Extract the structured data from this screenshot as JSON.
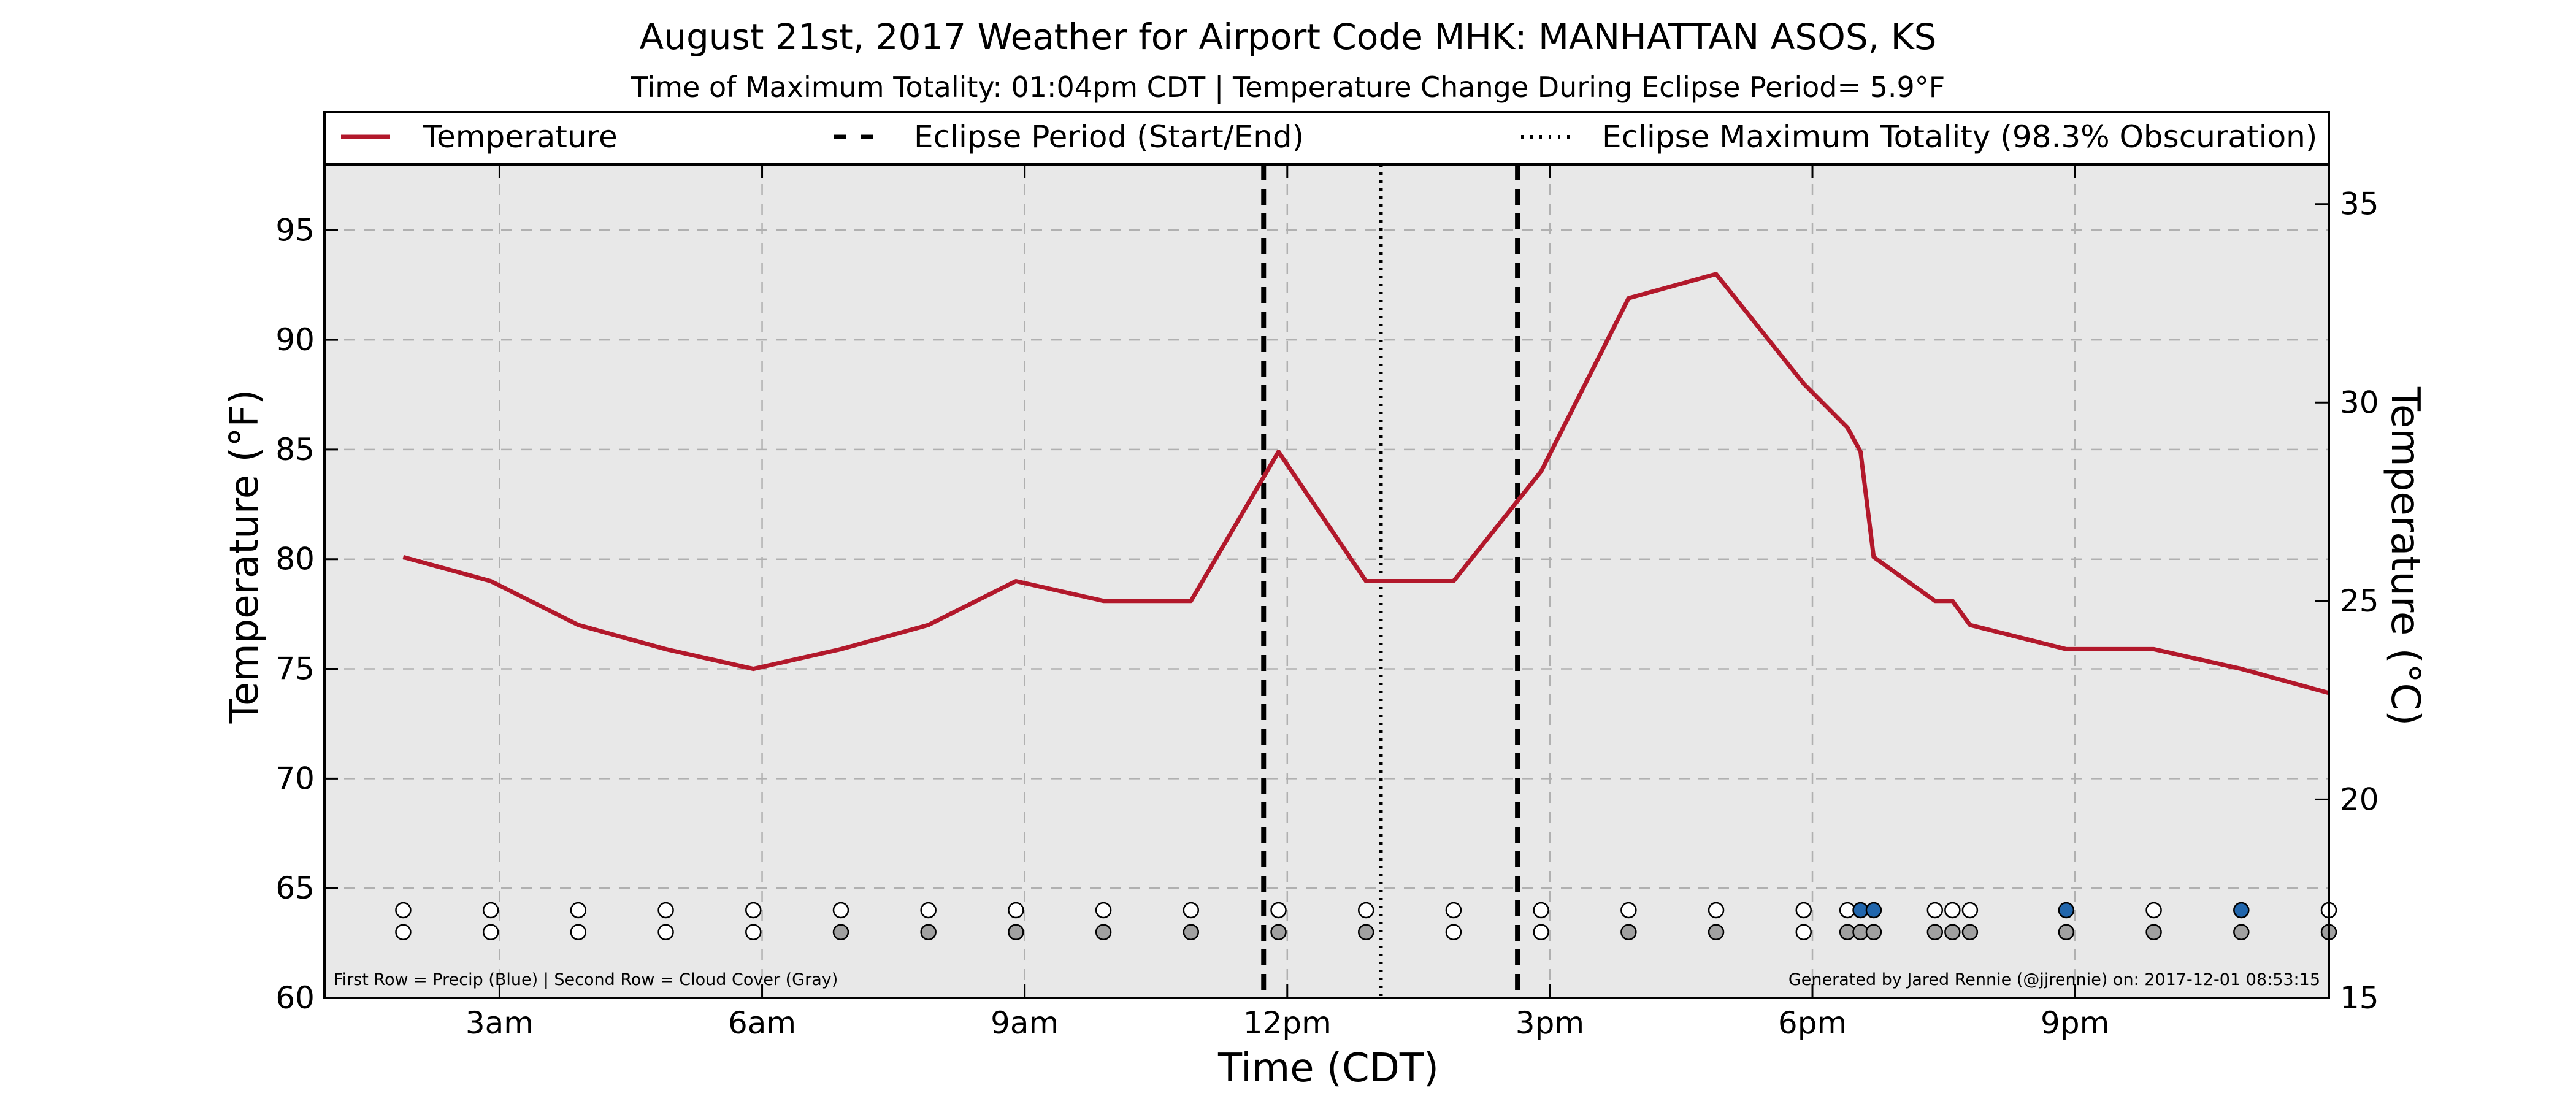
{
  "chart_data": {
    "type": "line",
    "title": "August 21st, 2017 Weather for Airport Code MHK: MANHATTAN ASOS, KS",
    "subtitle": "Time of Maximum Totality: 01:04pm CDT | Temperature Change During Eclipse Period= 5.9°F",
    "xlabel": "Time (CDT)",
    "ylabel_left": "Temperature (°F)",
    "ylabel_right": "Temperature (°C)",
    "xlim": [
      1.0,
      23.9
    ],
    "x_ticks": [
      {
        "x": 3,
        "label": "3am"
      },
      {
        "x": 6,
        "label": "6am"
      },
      {
        "x": 9,
        "label": "9am"
      },
      {
        "x": 12,
        "label": "12pm"
      },
      {
        "x": 15,
        "label": "3pm"
      },
      {
        "x": 18,
        "label": "6pm"
      },
      {
        "x": 21,
        "label": "9pm"
      }
    ],
    "ylim_left": [
      60,
      98
    ],
    "y_ticks_left": [
      60,
      65,
      70,
      75,
      80,
      85,
      90,
      95
    ],
    "ylim_right": [
      15,
      36
    ],
    "y_ticks_right": [
      15,
      20,
      25,
      30,
      35
    ],
    "grid": true,
    "legend": {
      "placement": "top",
      "entries": [
        {
          "label": "Temperature",
          "style": "solid"
        },
        {
          "label": "Eclipse Period (Start/End)",
          "style": "dashed"
        },
        {
          "label": "Eclipse Maximum Totality (98.3% Obscuration)",
          "style": "dotted"
        }
      ]
    },
    "series": [
      {
        "name": "Temperature",
        "color": "#b2182b",
        "x": [
          1.9,
          2.9,
          3.9,
          4.9,
          5.9,
          6.9,
          7.9,
          8.9,
          9.9,
          10.9,
          11.9,
          12.9,
          13.9,
          14.9,
          15.9,
          16.9,
          17.9,
          18.4,
          18.55,
          18.7,
          19.4,
          19.6,
          19.8,
          20.9,
          21.9,
          22.9,
          23.9
        ],
        "y": [
          80.1,
          79.0,
          77.0,
          75.9,
          75.0,
          75.9,
          77.0,
          79.0,
          78.1,
          78.1,
          84.9,
          79.0,
          79.0,
          84.0,
          91.9,
          93.0,
          88.0,
          86.0,
          84.9,
          80.1,
          78.1,
          78.1,
          77.0,
          75.9,
          75.9,
          75.0,
          73.9
        ]
      }
    ],
    "eclipse_start": 11.73,
    "eclipse_end": 14.63,
    "eclipse_max": 13.07,
    "precip_markers": [
      {
        "x": 1.9,
        "color": "#ffffff"
      },
      {
        "x": 2.9,
        "color": "#ffffff"
      },
      {
        "x": 3.9,
        "color": "#ffffff"
      },
      {
        "x": 4.9,
        "color": "#ffffff"
      },
      {
        "x": 5.9,
        "color": "#ffffff"
      },
      {
        "x": 6.9,
        "color": "#ffffff"
      },
      {
        "x": 7.9,
        "color": "#ffffff"
      },
      {
        "x": 8.9,
        "color": "#ffffff"
      },
      {
        "x": 9.9,
        "color": "#ffffff"
      },
      {
        "x": 10.9,
        "color": "#ffffff"
      },
      {
        "x": 11.9,
        "color": "#ffffff"
      },
      {
        "x": 12.9,
        "color": "#ffffff"
      },
      {
        "x": 13.9,
        "color": "#ffffff"
      },
      {
        "x": 14.9,
        "color": "#ffffff"
      },
      {
        "x": 15.9,
        "color": "#ffffff"
      },
      {
        "x": 16.9,
        "color": "#ffffff"
      },
      {
        "x": 17.9,
        "color": "#ffffff"
      },
      {
        "x": 18.4,
        "color": "#ffffff"
      },
      {
        "x": 18.55,
        "color": "#2166ac"
      },
      {
        "x": 18.7,
        "color": "#2166ac"
      },
      {
        "x": 19.4,
        "color": "#ffffff"
      },
      {
        "x": 19.6,
        "color": "#ffffff"
      },
      {
        "x": 19.8,
        "color": "#ffffff"
      },
      {
        "x": 20.9,
        "color": "#2166ac"
      },
      {
        "x": 21.9,
        "color": "#ffffff"
      },
      {
        "x": 22.9,
        "color": "#2166ac"
      },
      {
        "x": 23.9,
        "color": "#ffffff"
      }
    ],
    "cloud_markers": [
      {
        "x": 1.9,
        "color": "#ffffff"
      },
      {
        "x": 2.9,
        "color": "#ffffff"
      },
      {
        "x": 3.9,
        "color": "#ffffff"
      },
      {
        "x": 4.9,
        "color": "#ffffff"
      },
      {
        "x": 5.9,
        "color": "#ffffff"
      },
      {
        "x": 6.9,
        "color": "#a0a0a0"
      },
      {
        "x": 7.9,
        "color": "#a0a0a0"
      },
      {
        "x": 8.9,
        "color": "#a0a0a0"
      },
      {
        "x": 9.9,
        "color": "#a0a0a0"
      },
      {
        "x": 10.9,
        "color": "#a0a0a0"
      },
      {
        "x": 11.9,
        "color": "#a0a0a0"
      },
      {
        "x": 12.9,
        "color": "#a0a0a0"
      },
      {
        "x": 13.9,
        "color": "#ffffff"
      },
      {
        "x": 14.9,
        "color": "#ffffff"
      },
      {
        "x": 15.9,
        "color": "#a0a0a0"
      },
      {
        "x": 16.9,
        "color": "#a0a0a0"
      },
      {
        "x": 17.9,
        "color": "#ffffff"
      },
      {
        "x": 18.4,
        "color": "#a0a0a0"
      },
      {
        "x": 18.55,
        "color": "#a0a0a0"
      },
      {
        "x": 18.7,
        "color": "#a0a0a0"
      },
      {
        "x": 19.4,
        "color": "#a0a0a0"
      },
      {
        "x": 19.6,
        "color": "#a0a0a0"
      },
      {
        "x": 19.8,
        "color": "#a0a0a0"
      },
      {
        "x": 20.9,
        "color": "#a0a0a0"
      },
      {
        "x": 21.9,
        "color": "#a0a0a0"
      },
      {
        "x": 22.9,
        "color": "#a0a0a0"
      },
      {
        "x": 23.9,
        "color": "#a0a0a0"
      }
    ],
    "footnote_left": "First Row = Precip (Blue) | Second Row = Cloud Cover (Gray)",
    "footnote_right": "Generated by Jared Rennie (@jjrennie) on: 2017-12-01 08:53:15",
    "colors": {
      "plot_background": "#e8e8e8",
      "temperature_line": "#b2182b",
      "precip": "#2166ac",
      "cloud": "#a0a0a0"
    }
  }
}
